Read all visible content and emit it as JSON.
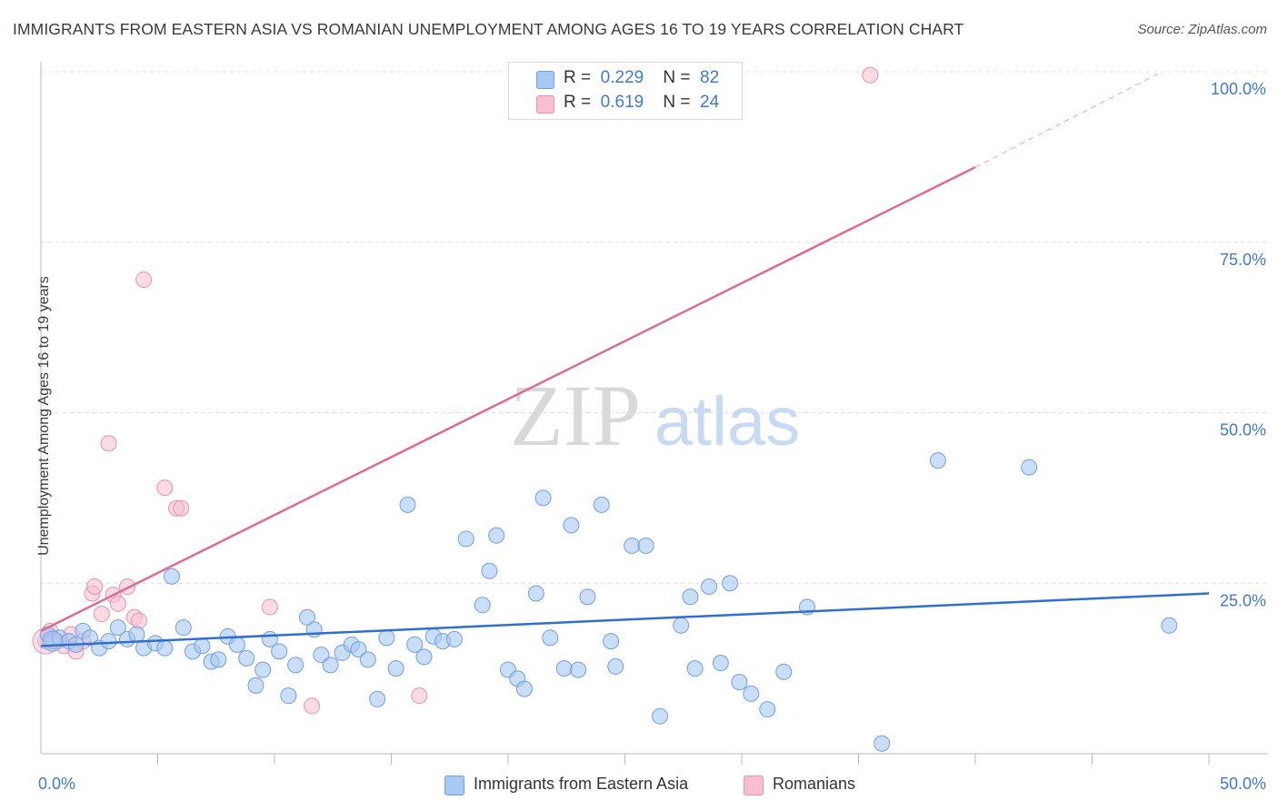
{
  "title": "IMMIGRANTS FROM EASTERN ASIA VS ROMANIAN UNEMPLOYMENT AMONG AGES 16 TO 19 YEARS CORRELATION CHART",
  "source": "Source: ZipAtlas.com",
  "watermark": {
    "zip": "ZIP",
    "atlas": "atlas"
  },
  "colors": {
    "blue_fill": "#a9c8f2",
    "blue_stroke": "#6f9fe0",
    "blue_line": "#2f6fcf",
    "pink_fill": "#f7bfd0",
    "pink_stroke": "#eb8fae",
    "pink_line": "#e06a95",
    "axis_text": "#3e7ad1",
    "grid": "#dcdcdc"
  },
  "legend_top": {
    "rows": [
      {
        "r_label": "R =",
        "r_value": "0.229",
        "n_label": "N =",
        "n_value": "82"
      },
      {
        "r_label": "R =",
        "r_value": "0.619",
        "n_label": "N =",
        "n_value": "24"
      }
    ]
  },
  "legend_bottom": [
    "Immigrants from Eastern Asia",
    "Romanians"
  ],
  "chart_data": {
    "type": "scatter",
    "title": "IMMIGRANTS FROM EASTERN ASIA VS ROMANIAN UNEMPLOYMENT AMONG AGES 16 TO 19 YEARS CORRELATION CHART",
    "xlabel": "",
    "ylabel": "Unemployment Among Ages 16 to 19 years",
    "xlim": [
      0,
      50
    ],
    "ylim": [
      0,
      103
    ],
    "x_tick_labels": [
      "0.0%",
      "50.0%"
    ],
    "y_tick_labels": [
      "25.0%",
      "50.0%",
      "75.0%",
      "100.0%"
    ],
    "y_ticks": [
      25,
      50,
      75,
      100
    ],
    "series": [
      {
        "name": "Immigrants from Eastern Asia",
        "R": 0.229,
        "N": 82,
        "trend": {
          "x0": 0,
          "y0": 15.8,
          "x1": 50,
          "y1": 23.5
        },
        "points": [
          [
            0.3,
            17.5
          ],
          [
            0.5,
            16.5
          ],
          [
            0.8,
            17.0
          ],
          [
            1.2,
            16.5
          ],
          [
            1.5,
            16.0
          ],
          [
            1.8,
            18.0
          ],
          [
            2.1,
            17.0
          ],
          [
            2.5,
            15.5
          ],
          [
            2.9,
            16.5
          ],
          [
            3.3,
            18.5
          ],
          [
            3.7,
            16.8
          ],
          [
            4.1,
            17.5
          ],
          [
            4.4,
            15.5
          ],
          [
            4.9,
            16.2
          ],
          [
            5.3,
            15.5
          ],
          [
            5.6,
            26.0
          ],
          [
            6.1,
            18.5
          ],
          [
            6.5,
            15.0
          ],
          [
            6.9,
            15.8
          ],
          [
            7.3,
            13.5
          ],
          [
            7.6,
            13.8
          ],
          [
            8.0,
            17.2
          ],
          [
            8.4,
            16.0
          ],
          [
            8.8,
            14.0
          ],
          [
            9.2,
            10.0
          ],
          [
            9.5,
            12.3
          ],
          [
            9.8,
            16.8
          ],
          [
            10.2,
            15.0
          ],
          [
            10.6,
            8.5
          ],
          [
            10.9,
            13.0
          ],
          [
            11.4,
            20.0
          ],
          [
            11.7,
            18.2
          ],
          [
            12.0,
            14.5
          ],
          [
            12.4,
            13.0
          ],
          [
            12.9,
            14.8
          ],
          [
            13.3,
            16.0
          ],
          [
            13.6,
            15.3
          ],
          [
            14.0,
            13.8
          ],
          [
            14.4,
            8.0
          ],
          [
            14.8,
            17.0
          ],
          [
            15.2,
            12.5
          ],
          [
            15.7,
            36.5
          ],
          [
            16.0,
            16.0
          ],
          [
            16.4,
            14.2
          ],
          [
            16.8,
            17.2
          ],
          [
            17.2,
            16.5
          ],
          [
            17.7,
            16.8
          ],
          [
            18.2,
            31.5
          ],
          [
            18.9,
            21.8
          ],
          [
            19.2,
            26.8
          ],
          [
            19.5,
            32.0
          ],
          [
            20.0,
            12.3
          ],
          [
            20.4,
            11.0
          ],
          [
            20.7,
            9.5
          ],
          [
            21.2,
            23.5
          ],
          [
            21.5,
            37.5
          ],
          [
            21.8,
            17.0
          ],
          [
            22.4,
            12.5
          ],
          [
            22.7,
            33.5
          ],
          [
            23.0,
            12.3
          ],
          [
            23.4,
            23.0
          ],
          [
            24.0,
            36.5
          ],
          [
            24.4,
            16.5
          ],
          [
            24.6,
            12.8
          ],
          [
            25.3,
            30.5
          ],
          [
            25.9,
            30.5
          ],
          [
            26.5,
            5.5
          ],
          [
            27.4,
            18.8
          ],
          [
            27.8,
            23.0
          ],
          [
            28.0,
            12.5
          ],
          [
            28.6,
            24.5
          ],
          [
            29.1,
            13.3
          ],
          [
            29.5,
            25.0
          ],
          [
            29.9,
            10.5
          ],
          [
            30.4,
            8.8
          ],
          [
            31.1,
            6.5
          ],
          [
            31.8,
            12.0
          ],
          [
            32.8,
            21.5
          ],
          [
            36.0,
            1.5
          ],
          [
            38.4,
            43.0
          ],
          [
            42.3,
            42.0
          ],
          [
            48.3,
            18.8
          ]
        ]
      },
      {
        "name": "Romanians",
        "R": 0.619,
        "N": 24,
        "trend": {
          "x0": 0,
          "y0": 18.0,
          "x1": 40,
          "y1": 86.0
        },
        "trend_dashed": {
          "x0": 40,
          "y0": 86.0,
          "x1": 48,
          "y1": 100.0
        },
        "points": [
          [
            0.2,
            16.5
          ],
          [
            0.4,
            18.0
          ],
          [
            0.7,
            16.5
          ],
          [
            1.0,
            15.8
          ],
          [
            1.3,
            17.5
          ],
          [
            1.5,
            15.0
          ],
          [
            1.8,
            16.5
          ],
          [
            2.2,
            23.5
          ],
          [
            2.3,
            24.5
          ],
          [
            2.6,
            20.5
          ],
          [
            2.9,
            45.5
          ],
          [
            3.1,
            23.3
          ],
          [
            3.3,
            22.0
          ],
          [
            3.7,
            24.5
          ],
          [
            4.0,
            20.0
          ],
          [
            4.2,
            19.5
          ],
          [
            4.4,
            69.5
          ],
          [
            5.3,
            39.0
          ],
          [
            5.8,
            36.0
          ],
          [
            6.0,
            36.0
          ],
          [
            9.8,
            21.5
          ],
          [
            11.6,
            7.0
          ],
          [
            16.2,
            8.5
          ],
          [
            35.5,
            99.5
          ]
        ]
      }
    ]
  }
}
